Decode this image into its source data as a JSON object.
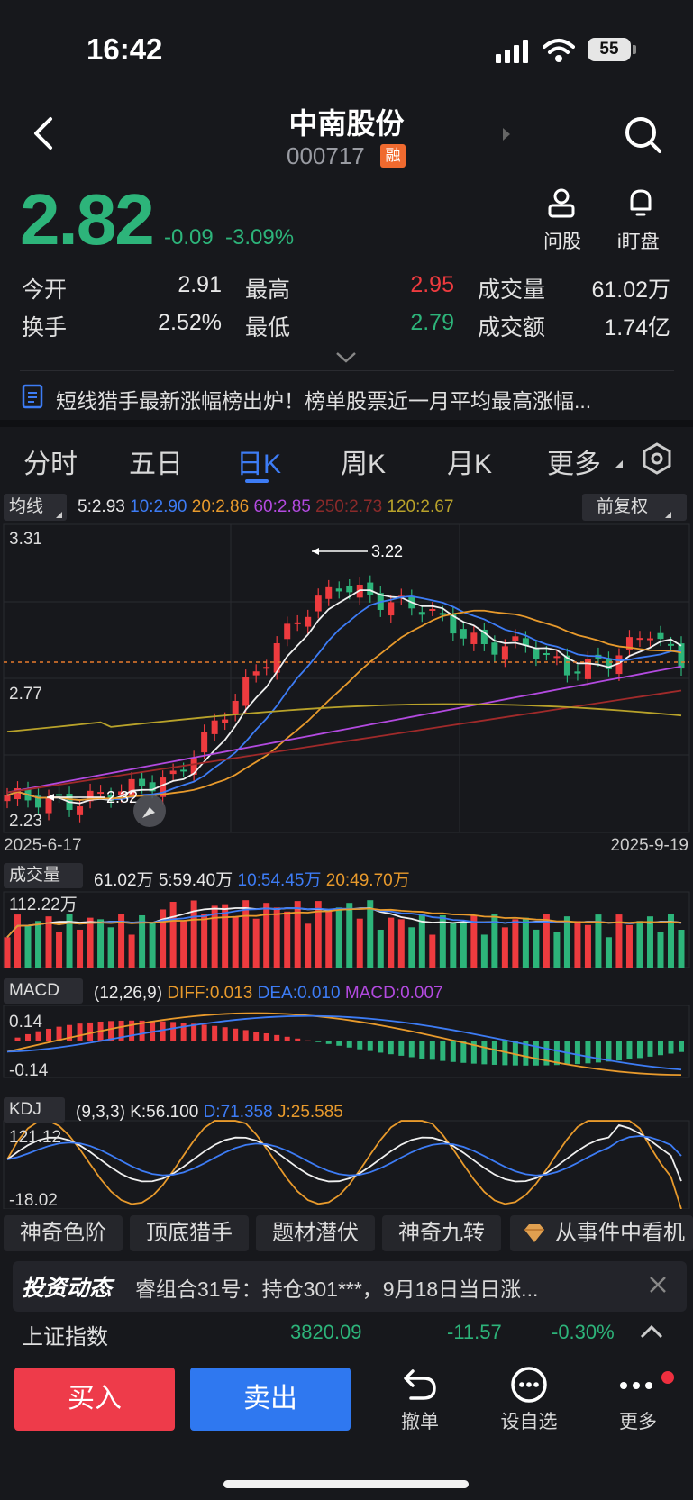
{
  "status_bar": {
    "time": "16:42",
    "battery": "55"
  },
  "header": {
    "stock_name": "中南股份",
    "stock_code": "000717",
    "margin_badge": "融"
  },
  "quote": {
    "price": "2.82",
    "change": "-0.09",
    "change_pct": "-3.09%",
    "ask_stock": "问股",
    "watch_market": "i盯盘",
    "open_label": "今开",
    "open": "2.91",
    "high_label": "最高",
    "high": "2.95",
    "volume_label": "成交量",
    "volume": "61.02万",
    "turnover_label": "换手",
    "turnover": "2.52%",
    "low_label": "最低",
    "low": "2.79",
    "amount_label": "成交额",
    "amount": "1.74亿"
  },
  "notice": {
    "text": "短线猎手最新涨幅榜出炉！榜单股票近一月平均最高涨幅..."
  },
  "tabs": [
    "分时",
    "五日",
    "日K",
    "周K",
    "月K",
    "更多"
  ],
  "active_tab": "日K",
  "ma_bar": {
    "button": "均线",
    "items": [
      {
        "text": "5:2.93",
        "color": "#e8e8e8"
      },
      {
        "text": "10:2.90",
        "color": "#3d7cf5"
      },
      {
        "text": "20:2.86",
        "color": "#e89a2c"
      },
      {
        "text": "60:2.85",
        "color": "#b34ae0"
      },
      {
        "text": "250:2.73",
        "color": "#8b2a2a"
      },
      {
        "text": "120:2.67",
        "color": "#b8a22a"
      }
    ],
    "adjust": "前复权"
  },
  "kline": {
    "ymax": "3.31",
    "ymid": "2.77",
    "ymin": "2.23",
    "high_mark": "3.22",
    "low_mark": "2.32",
    "date_start": "2025-6-17",
    "date_end": "2025-9-19"
  },
  "volume_panel": {
    "button": "成交量",
    "total": "61.02万",
    "ma5": "5:59.40万",
    "ma10": "10:54.45万",
    "ma20": "20:49.70万",
    "ymax": "112.22万"
  },
  "macd_panel": {
    "button": "MACD",
    "params": "(12,26,9)",
    "diff": "DIFF:0.013",
    "dea": "DEA:0.010",
    "macd": "MACD:0.007",
    "ymax": "0.14",
    "ymin": "-0.14"
  },
  "kdj_panel": {
    "button": "KDJ",
    "params": "(9,3,3)",
    "k": "K:56.100",
    "d": "D:71.358",
    "j": "J:25.585",
    "ymax": "121.12",
    "ymin": "-18.02"
  },
  "feature_pills": [
    "神奇色阶",
    "顶底猎手",
    "题材潜伏",
    "神奇九转",
    "从事件中看机"
  ],
  "news": {
    "brand": "投资动态",
    "text": "睿组合31号：持仓301***，9月18日当日涨..."
  },
  "index_row": {
    "name": "上证指数",
    "value": "3820.09",
    "change": "-11.57",
    "change_pct": "-0.30%"
  },
  "bottom_bar": {
    "buy": "买入",
    "sell": "卖出",
    "cancel": "撤单",
    "watchlist": "设自选",
    "more": "更多"
  }
}
